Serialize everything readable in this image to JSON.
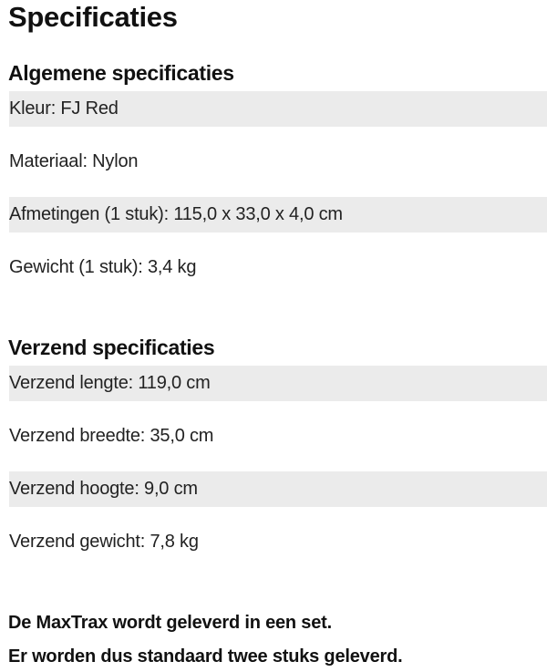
{
  "title": "Specificaties",
  "general": {
    "heading": "Algemene specificaties",
    "rows": [
      "Kleur: FJ Red",
      "Materiaal: Nylon",
      "Afmetingen (1 stuk): 115,0 x 33,0 x 4,0 cm",
      "Gewicht (1 stuk): 3,4 kg"
    ]
  },
  "shipping": {
    "heading": "Verzend specificaties",
    "rows": [
      "Verzend lengte: 119,0 cm",
      "Verzend breedte: 35,0 cm",
      "Verzend hoogte: 9,0 cm",
      "Verzend gewicht: 7,8 kg"
    ]
  },
  "notes": [
    "De MaxTrax wordt geleverd in een set.",
    "Er worden dus standaard twee stuks geleverd."
  ],
  "colors": {
    "row_shade": "#ebebeb"
  }
}
